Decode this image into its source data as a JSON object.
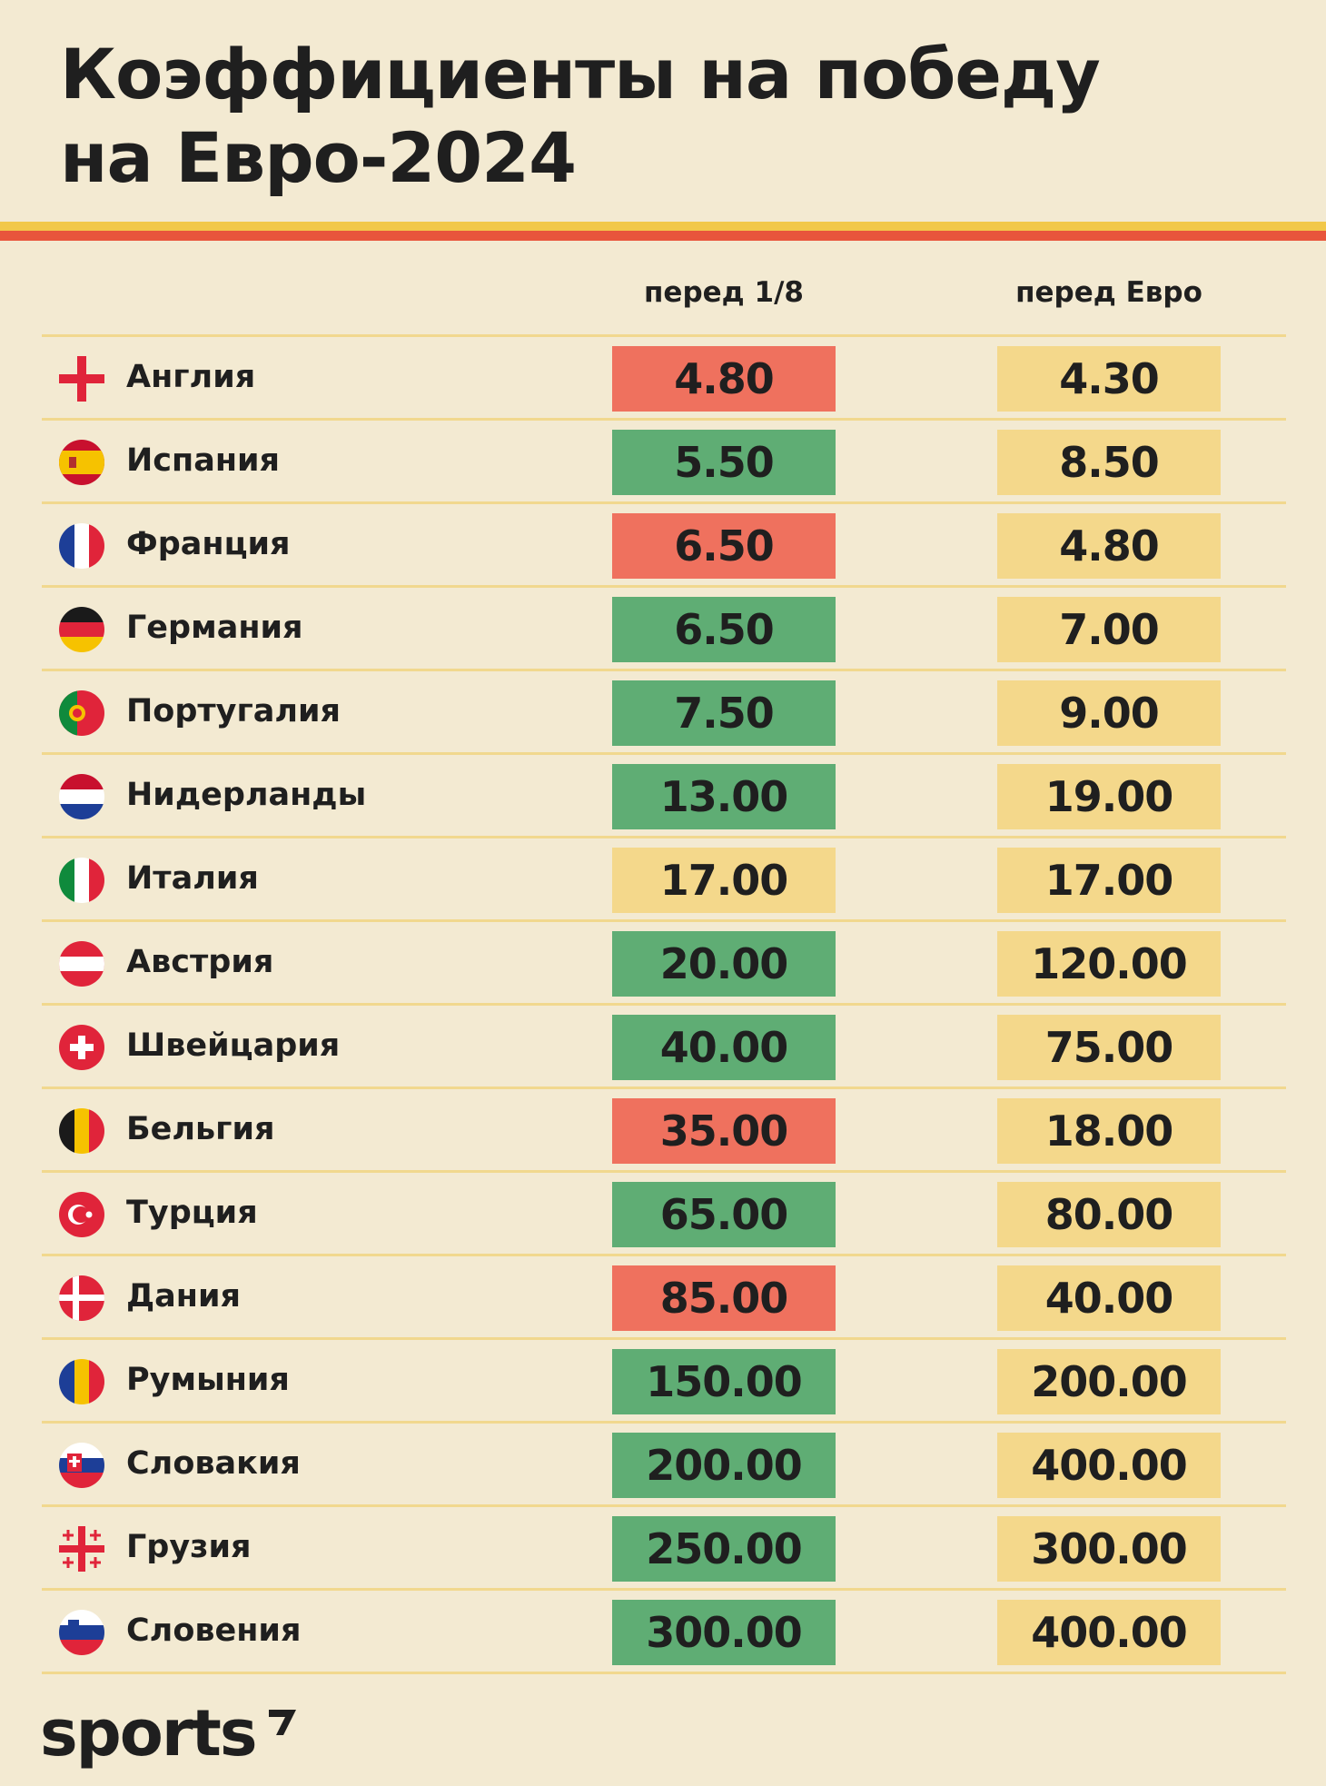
{
  "title": {
    "line1": "Коэффициенты на победу",
    "line2": "на Евро-2024"
  },
  "columns": {
    "col1": "перед 1/8",
    "col2": "перед Евро"
  },
  "colors": {
    "red": "#ef715e",
    "green": "#5fad74",
    "yellow": "#f4d88b",
    "background": "#f3ead2",
    "stripe_yellow": "#f2c84a",
    "stripe_red": "#e8553c"
  },
  "chart_data": {
    "type": "table",
    "title": "Коэффициенты на победу на Евро-2024",
    "columns": [
      "перед 1/8",
      "перед Евро"
    ],
    "rows": [
      {
        "country": "Англия",
        "flag": "england-flag-icon",
        "before_r16": "4.80",
        "before_euro": "4.30",
        "status": "red"
      },
      {
        "country": "Испания",
        "flag": "spain-flag-icon",
        "before_r16": "5.50",
        "before_euro": "8.50",
        "status": "green"
      },
      {
        "country": "Франция",
        "flag": "france-flag-icon",
        "before_r16": "6.50",
        "before_euro": "4.80",
        "status": "red"
      },
      {
        "country": "Германия",
        "flag": "germany-flag-icon",
        "before_r16": "6.50",
        "before_euro": "7.00",
        "status": "green"
      },
      {
        "country": "Португалия",
        "flag": "portugal-flag-icon",
        "before_r16": "7.50",
        "before_euro": "9.00",
        "status": "green"
      },
      {
        "country": "Нидерланды",
        "flag": "netherlands-flag-icon",
        "before_r16": "13.00",
        "before_euro": "19.00",
        "status": "green"
      },
      {
        "country": "Италия",
        "flag": "italy-flag-icon",
        "before_r16": "17.00",
        "before_euro": "17.00",
        "status": "yellow"
      },
      {
        "country": "Австрия",
        "flag": "austria-flag-icon",
        "before_r16": "20.00",
        "before_euro": "120.00",
        "status": "green"
      },
      {
        "country": "Швейцария",
        "flag": "switzerland-flag-icon",
        "before_r16": "40.00",
        "before_euro": "75.00",
        "status": "green"
      },
      {
        "country": "Бельгия",
        "flag": "belgium-flag-icon",
        "before_r16": "35.00",
        "before_euro": "18.00",
        "status": "red"
      },
      {
        "country": "Турция",
        "flag": "turkey-flag-icon",
        "before_r16": "65.00",
        "before_euro": "80.00",
        "status": "green"
      },
      {
        "country": "Дания",
        "flag": "denmark-flag-icon",
        "before_r16": "85.00",
        "before_euro": "40.00",
        "status": "red"
      },
      {
        "country": "Румыния",
        "flag": "romania-flag-icon",
        "before_r16": "150.00",
        "before_euro": "200.00",
        "status": "green"
      },
      {
        "country": "Словакия",
        "flag": "slovakia-flag-icon",
        "before_r16": "200.00",
        "before_euro": "400.00",
        "status": "green"
      },
      {
        "country": "Грузия",
        "flag": "georgia-flag-icon",
        "before_r16": "250.00",
        "before_euro": "300.00",
        "status": "green"
      },
      {
        "country": "Словения",
        "flag": "slovenia-flag-icon",
        "before_r16": "300.00",
        "before_euro": "400.00",
        "status": "green"
      }
    ]
  },
  "footer": {
    "logo_text": "sports",
    "logo_icon": "sports-logo-mark-icon"
  }
}
